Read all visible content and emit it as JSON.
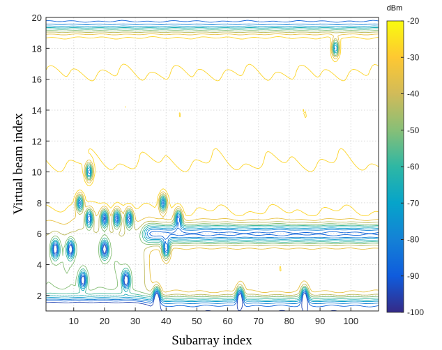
{
  "chart_data": {
    "type": "contour",
    "xlabel": "Subarray index",
    "ylabel": "Virtual beam index",
    "xlim": [
      1,
      109
    ],
    "ylim": [
      1,
      20
    ],
    "xticks": [
      10,
      20,
      30,
      40,
      50,
      60,
      70,
      80,
      90,
      100
    ],
    "yticks": [
      2,
      4,
      6,
      8,
      10,
      12,
      14,
      16,
      18,
      20
    ],
    "grid": true,
    "colorbar": {
      "unit": "dBm",
      "ticks": [
        -20,
        -30,
        -40,
        -50,
        -60,
        -70,
        -80,
        -90,
        -100
      ],
      "range": [
        -100,
        -20
      ],
      "colormap": "parula"
    },
    "regions": {
      "high_power_rows_y": [
        9,
        18
      ],
      "low_power_bands": [
        {
          "y_range": [
            19,
            20
          ],
          "dbm": -90
        },
        {
          "y_range": [
            1,
            2
          ],
          "dbm": -90
        },
        {
          "y_range": [
            6,
            7
          ],
          "x_range": [
            33,
            109
          ],
          "dbm": -90
        }
      ],
      "isolated_minima": [
        {
          "x": 15,
          "y": 10
        },
        {
          "x": 12,
          "y": 8
        },
        {
          "x": 39,
          "y": 8
        },
        {
          "x": 4,
          "y": 5
        },
        {
          "x": 9,
          "y": 5
        },
        {
          "x": 20,
          "y": 5
        },
        {
          "x": 15,
          "y": 7
        },
        {
          "x": 20,
          "y": 7
        },
        {
          "x": 24,
          "y": 7
        },
        {
          "x": 28,
          "y": 7
        },
        {
          "x": 13,
          "y": 3
        },
        {
          "x": 27,
          "y": 3
        },
        {
          "x": 37,
          "y": 2
        },
        {
          "x": 40,
          "y": 5
        },
        {
          "x": 64,
          "y": 2
        },
        {
          "x": 85,
          "y": 2
        },
        {
          "x": 44,
          "y": 7
        },
        {
          "x": 95,
          "y": 18
        }
      ]
    }
  }
}
